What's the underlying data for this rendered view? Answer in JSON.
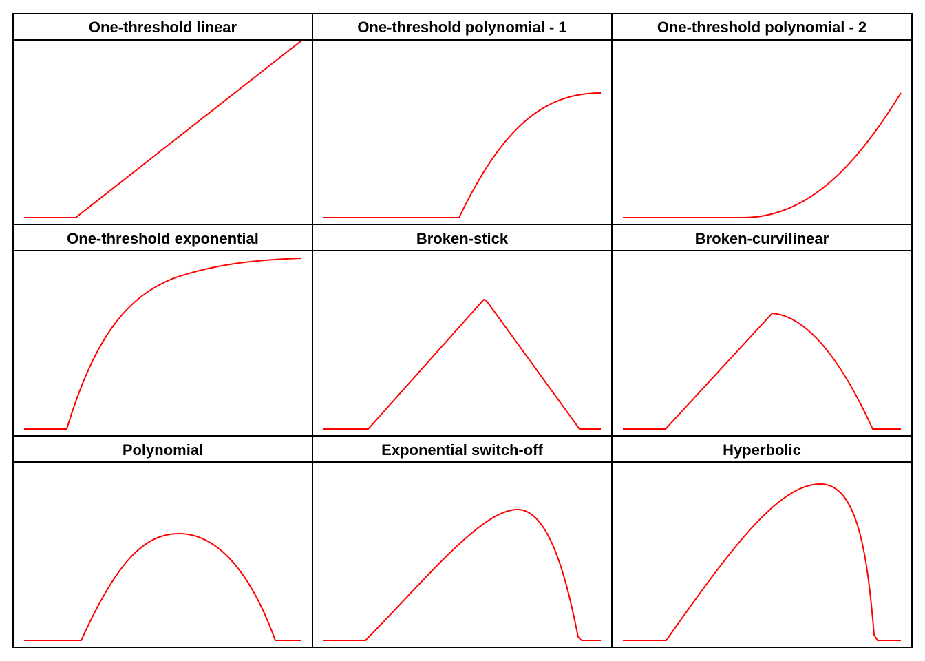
{
  "colors": {
    "curve": "#ff0000",
    "border": "#000000",
    "background": "#ffffff"
  },
  "panels": [
    {
      "title": "One-threshold linear",
      "shape": "linear-threshold"
    },
    {
      "title": "One-threshold polynomial - 1",
      "shape": "polynomial-concave-threshold"
    },
    {
      "title": "One-threshold polynomial - 2",
      "shape": "polynomial-convex-threshold"
    },
    {
      "title": "One-threshold exponential",
      "shape": "exponential-saturating-threshold"
    },
    {
      "title": "Broken-stick",
      "shape": "broken-stick"
    },
    {
      "title": "Broken-curvilinear",
      "shape": "broken-curvilinear"
    },
    {
      "title": "Polynomial",
      "shape": "polynomial-hump"
    },
    {
      "title": "Exponential switch-off",
      "shape": "exponential-switch-off"
    },
    {
      "title": "Hyperbolic",
      "shape": "hyperbolic"
    }
  ]
}
